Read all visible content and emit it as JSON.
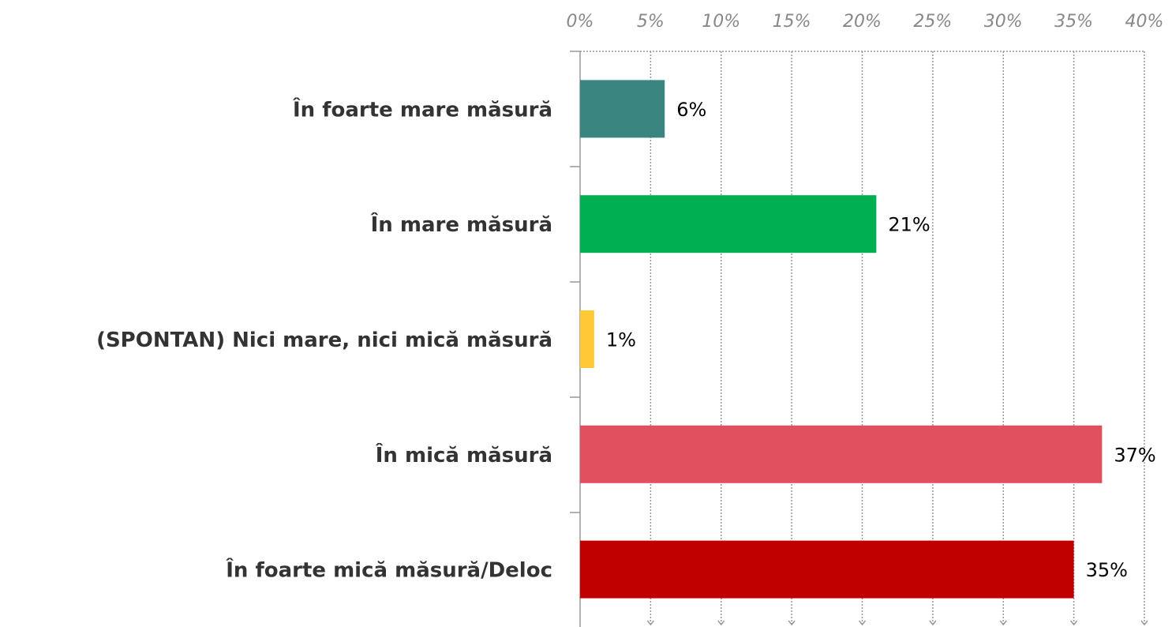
{
  "chart_data": {
    "type": "hbar",
    "categories": [
      "În foarte mare măsură",
      "În mare măsură",
      "(SPONTAN) Nici mare, nici mică măsură",
      "În mică măsură",
      "În foarte mică măsură/Deloc"
    ],
    "values": [
      6,
      21,
      1,
      37,
      35
    ],
    "value_labels": [
      "6%",
      "21%",
      "1%",
      "37%",
      "35%"
    ],
    "colors": [
      "#3a8580",
      "#00b050",
      "#ffc936",
      "#e0505e",
      "#c00000"
    ],
    "xlim": [
      0,
      40
    ],
    "xticks": [
      {
        "value": 0,
        "label": "0%"
      },
      {
        "value": 5,
        "label": "5%"
      },
      {
        "value": 10,
        "label": "10%"
      },
      {
        "value": 15,
        "label": "15%"
      },
      {
        "value": 20,
        "label": "20%"
      },
      {
        "value": 25,
        "label": "25%"
      },
      {
        "value": 30,
        "label": "30%"
      },
      {
        "value": 35,
        "label": "35%"
      },
      {
        "value": 40,
        "label": "40%"
      }
    ],
    "grid": true
  }
}
